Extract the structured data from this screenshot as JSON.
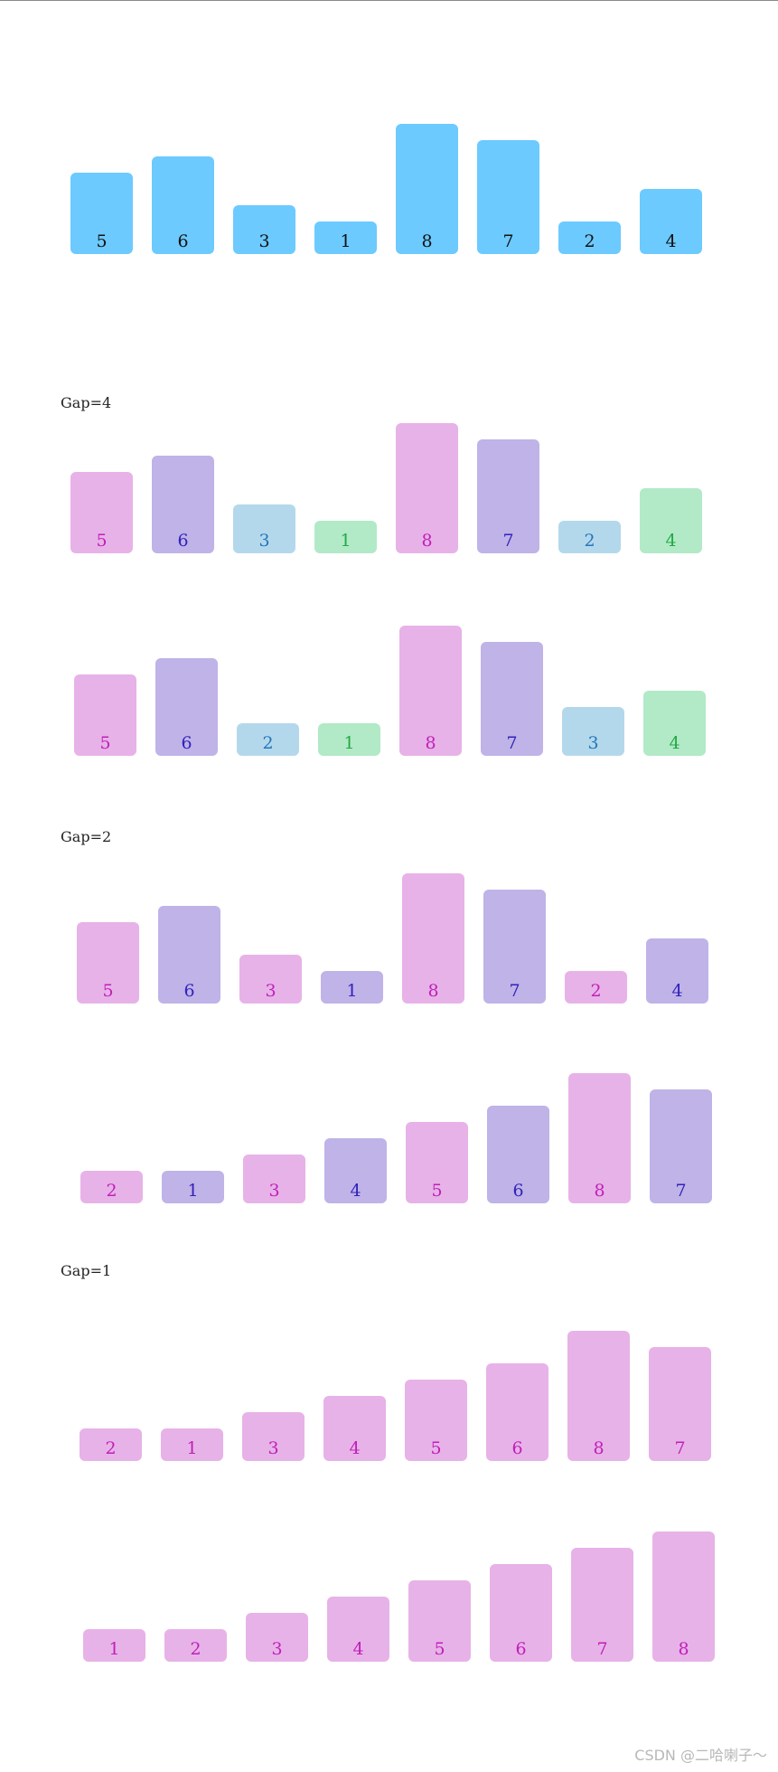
{
  "palette": {
    "blue": {
      "fill": "#6ccaff",
      "text": "#111111"
    },
    "pink": {
      "fill": "#e7b2e8",
      "text": "#c020b8"
    },
    "violet": {
      "fill": "#bfb3e7",
      "text": "#3322bb"
    },
    "sky": {
      "fill": "#b4d8eb",
      "text": "#2277bb"
    },
    "mint": {
      "fill": "#b2e9c7",
      "text": "#22aa44"
    }
  },
  "rows": [
    {
      "label": "",
      "values": [
        5,
        6,
        3,
        1,
        8,
        7,
        2,
        4
      ],
      "colors": [
        "blue",
        "blue",
        "blue",
        "blue",
        "blue",
        "blue",
        "blue",
        "blue"
      ]
    },
    {
      "label": "Gap=4",
      "values": [
        5,
        6,
        3,
        1,
        8,
        7,
        2,
        4
      ],
      "colors": [
        "pink",
        "violet",
        "sky",
        "mint",
        "pink",
        "violet",
        "sky",
        "mint"
      ]
    },
    {
      "label": "",
      "values": [
        5,
        6,
        2,
        1,
        8,
        7,
        3,
        4
      ],
      "colors": [
        "pink",
        "violet",
        "sky",
        "mint",
        "pink",
        "violet",
        "sky",
        "mint"
      ]
    },
    {
      "label": "Gap=2",
      "values": [
        5,
        6,
        3,
        1,
        8,
        7,
        2,
        4
      ],
      "colors": [
        "pink",
        "violet",
        "pink",
        "violet",
        "pink",
        "violet",
        "pink",
        "violet"
      ]
    },
    {
      "label": "",
      "values": [
        2,
        1,
        3,
        4,
        5,
        6,
        8,
        7
      ],
      "colors": [
        "pink",
        "violet",
        "pink",
        "violet",
        "pink",
        "violet",
        "pink",
        "violet"
      ]
    },
    {
      "label": "Gap=1",
      "values": [
        2,
        1,
        3,
        4,
        5,
        6,
        8,
        7
      ],
      "colors": [
        "pink",
        "pink",
        "pink",
        "pink",
        "pink",
        "pink",
        "pink",
        "pink"
      ]
    },
    {
      "label": "",
      "values": [
        1,
        2,
        3,
        4,
        5,
        6,
        7,
        8
      ],
      "colors": [
        "pink",
        "pink",
        "pink",
        "pink",
        "pink",
        "pink",
        "pink",
        "pink"
      ]
    }
  ],
  "watermark": "CSDN @二哈喇子～"
}
